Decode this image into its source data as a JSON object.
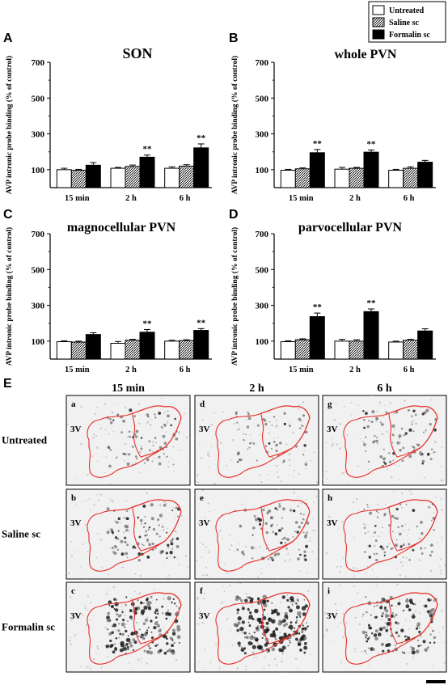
{
  "legend": {
    "items": [
      {
        "label": "Untreated",
        "fill": "white"
      },
      {
        "label": "Saline sc",
        "fill": "hatch"
      },
      {
        "label": "Formalin sc",
        "fill": "black"
      }
    ]
  },
  "colors": {
    "outline": "#e8302a",
    "bar_dark": "#000000",
    "bar_light": "#ffffff",
    "tissue_bg": "#f1f1f1"
  },
  "y_axis_label": "AVP intronic probe binding (% of control)",
  "significance_marker": "**",
  "chart_data": [
    {
      "panel": "A",
      "title": "SON",
      "type": "bar",
      "categories": [
        "15 min",
        "2 h",
        "6 h"
      ],
      "ylim": [
        0,
        700
      ],
      "yticks": [
        100,
        300,
        500,
        700
      ],
      "series": [
        {
          "name": "Untreated",
          "values": [
            100,
            108,
            108
          ],
          "errors": [
            8,
            5,
            8
          ]
        },
        {
          "name": "Saline sc",
          "values": [
            97,
            118,
            120
          ],
          "errors": [
            5,
            8,
            8
          ]
        },
        {
          "name": "Formalin sc",
          "values": [
            125,
            170,
            222
          ],
          "errors": [
            15,
            12,
            22
          ]
        }
      ],
      "significant": [
        [],
        [
          "Formalin sc"
        ],
        [
          "Formalin sc"
        ]
      ]
    },
    {
      "panel": "B",
      "title": "whole PVN",
      "type": "bar",
      "categories": [
        "15 min",
        "2 h",
        "6 h"
      ],
      "ylim": [
        0,
        700
      ],
      "yticks": [
        100,
        300,
        500,
        700
      ],
      "series": [
        {
          "name": "Untreated",
          "values": [
            97,
            103,
            97
          ],
          "errors": [
            5,
            10,
            5
          ]
        },
        {
          "name": "Saline sc",
          "values": [
            105,
            108,
            108
          ],
          "errors": [
            5,
            5,
            8
          ]
        },
        {
          "name": "Formalin sc",
          "values": [
            195,
            198,
            142
          ],
          "errors": [
            18,
            12,
            10
          ]
        }
      ],
      "significant": [
        [
          "Formalin sc"
        ],
        [
          "Formalin sc"
        ],
        []
      ]
    },
    {
      "panel": "C",
      "title": "magnocellular PVN",
      "type": "bar",
      "categories": [
        "15 min",
        "2 h",
        "6 h"
      ],
      "ylim": [
        0,
        700
      ],
      "yticks": [
        100,
        300,
        500,
        700
      ],
      "series": [
        {
          "name": "Untreated",
          "values": [
            97,
            88,
            100
          ],
          "errors": [
            5,
            10,
            5
          ]
        },
        {
          "name": "Saline sc",
          "values": [
            95,
            105,
            103
          ],
          "errors": [
            5,
            5,
            5
          ]
        },
        {
          "name": "Formalin sc",
          "values": [
            137,
            150,
            160
          ],
          "errors": [
            10,
            15,
            10
          ]
        }
      ],
      "significant": [
        [],
        [
          "Formalin sc"
        ],
        [
          "Formalin sc"
        ]
      ]
    },
    {
      "panel": "D",
      "title": "parvocellular PVN",
      "type": "bar",
      "categories": [
        "15 min",
        "2 h",
        "6 h"
      ],
      "ylim": [
        0,
        700
      ],
      "yticks": [
        100,
        300,
        500,
        700
      ],
      "series": [
        {
          "name": "Untreated",
          "values": [
            97,
            100,
            95
          ],
          "errors": [
            5,
            10,
            5
          ]
        },
        {
          "name": "Saline sc",
          "values": [
            108,
            100,
            105
          ],
          "errors": [
            5,
            8,
            5
          ]
        },
        {
          "name": "Formalin sc",
          "values": [
            237,
            265,
            157
          ],
          "errors": [
            20,
            15,
            12
          ]
        }
      ],
      "significant": [
        [
          "Formalin sc"
        ],
        [
          "Formalin sc"
        ],
        []
      ]
    }
  ],
  "panel_e": {
    "label": "E",
    "columns": [
      "15 min",
      "2 h",
      "6 h"
    ],
    "rows": [
      "Untreated",
      "Saline sc",
      "Formalin sc"
    ],
    "tiles": [
      [
        "a",
        "d",
        "g"
      ],
      [
        "b",
        "e",
        "h"
      ],
      [
        "c",
        "f",
        "i"
      ]
    ],
    "ventricle_label": "3V",
    "density": [
      [
        0.15,
        0.08,
        0.2
      ],
      [
        0.25,
        0.18,
        0.12
      ],
      [
        0.6,
        0.7,
        0.45
      ]
    ]
  }
}
